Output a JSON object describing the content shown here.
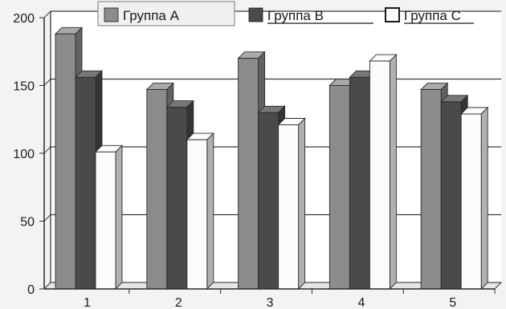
{
  "chart_data": {
    "type": "bar",
    "categories": [
      "1",
      "2",
      "3",
      "4",
      "5"
    ],
    "series": [
      {
        "name": "Группа А",
        "values": [
          188,
          147,
          170,
          150,
          147
        ],
        "color": "#8c8c8c"
      },
      {
        "name": "Группа В",
        "values": [
          156,
          134,
          130,
          156,
          138
        ],
        "color": "#4a4a4a"
      },
      {
        "name": "Группа С",
        "values": [
          101,
          110,
          121,
          168,
          129
        ],
        "color": "#fbfbfb"
      }
    ],
    "yticks": [
      "0",
      "50",
      "100",
      "150",
      "200"
    ],
    "ylim": [
      0,
      200
    ],
    "grid": true,
    "legend_position": "top",
    "bar_style": "3d"
  }
}
